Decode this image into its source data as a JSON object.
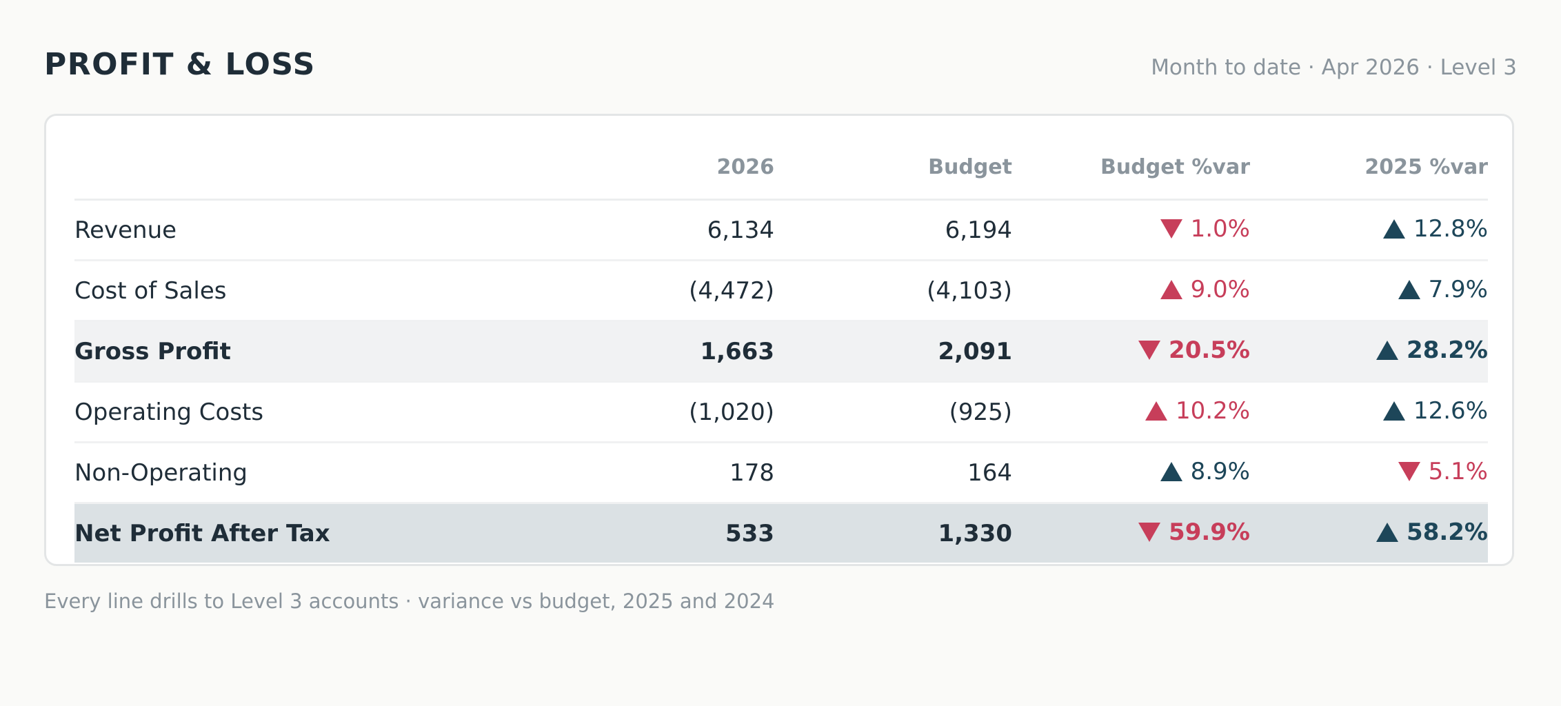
{
  "header": {
    "title": "PROFIT & LOSS",
    "subtitle": "Month to date · Apr 2026 · Level 3"
  },
  "table": {
    "columns": [
      "",
      "2026",
      "Budget",
      "Budget %var",
      "2025 %var"
    ],
    "rows": [
      {
        "label": "Revenue",
        "v2026": "6,134",
        "budget": "6,194",
        "budget_var": {
          "text": "1.0%",
          "direction": "down",
          "tone": "negative"
        },
        "var2025": {
          "text": "12.8%",
          "direction": "up",
          "tone": "positive"
        }
      },
      {
        "label": "Cost of Sales",
        "v2026": "(4,472)",
        "budget": "(4,103)",
        "budget_var": {
          "text": "9.0%",
          "direction": "up",
          "tone": "negative"
        },
        "var2025": {
          "text": "7.9%",
          "direction": "up",
          "tone": "positive"
        }
      },
      {
        "label": "Gross Profit",
        "v2026": "1,663",
        "budget": "2,091",
        "budget_var": {
          "text": "20.5%",
          "direction": "down",
          "tone": "negative"
        },
        "var2025": {
          "text": "28.2%",
          "direction": "up",
          "tone": "positive"
        }
      },
      {
        "label": "Operating Costs",
        "v2026": "(1,020)",
        "budget": "(925)",
        "budget_var": {
          "text": "10.2%",
          "direction": "up",
          "tone": "negative"
        },
        "var2025": {
          "text": "12.6%",
          "direction": "up",
          "tone": "positive"
        }
      },
      {
        "label": "Non-Operating",
        "v2026": "178",
        "budget": "164",
        "budget_var": {
          "text": "8.9%",
          "direction": "up",
          "tone": "positive"
        },
        "var2025": {
          "text": "5.1%",
          "direction": "down",
          "tone": "negative"
        }
      },
      {
        "label": "Net Profit After Tax",
        "v2026": "533",
        "budget": "1,330",
        "budget_var": {
          "text": "59.9%",
          "direction": "down",
          "tone": "negative"
        },
        "var2025": {
          "text": "58.2%",
          "direction": "up",
          "tone": "positive"
        }
      }
    ]
  },
  "colors": {
    "negative": "#c73e5a",
    "positive": "#1d4659",
    "subtotal_bg": "#f1f2f3",
    "total_bg": "#dbe1e4"
  },
  "footnote": "Every line drills to Level 3 accounts · variance vs budget, 2025 and 2024"
}
